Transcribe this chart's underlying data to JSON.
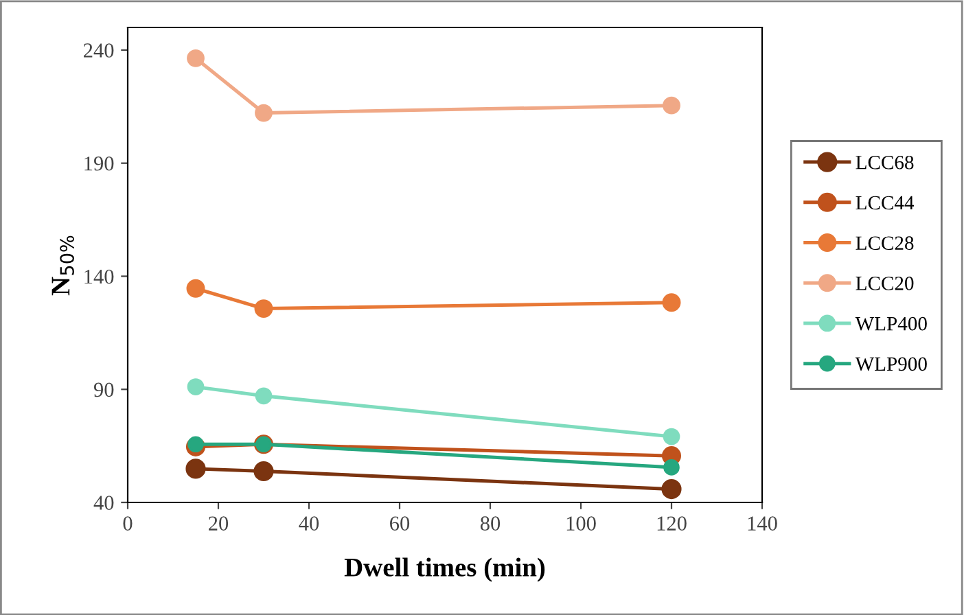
{
  "chart_data": {
    "type": "line",
    "xlabel": "Dwell times (min)",
    "ylabel": "N$_{50%}$",
    "x": [
      15,
      30,
      120
    ],
    "series": [
      {
        "name": "LCC68",
        "color": "#7b3410",
        "values": [
          54.9,
          53.8,
          45.9
        ]
      },
      {
        "name": "LCC44",
        "color": "#c0521c",
        "values": [
          64.6,
          65.7,
          60.6
        ]
      },
      {
        "name": "LCC28",
        "color": "#e87937",
        "values": [
          134.6,
          125.7,
          128.4
        ]
      },
      {
        "name": "LCC20",
        "color": "#f0a886",
        "values": [
          236.4,
          212.2,
          215.5
        ]
      },
      {
        "name": "WLP400",
        "color": "#7fdcbe",
        "values": [
          91.1,
          87.1,
          69.1
        ]
      },
      {
        "name": "WLP900",
        "color": "#26a77f",
        "values": [
          65.7,
          65.7,
          55.5
        ]
      }
    ],
    "xlim": [
      0,
      140
    ],
    "xticks": [
      0,
      20,
      40,
      60,
      80,
      100,
      120,
      140
    ],
    "ylim": [
      40,
      250
    ],
    "yticks": [
      40,
      90,
      140,
      190,
      240
    ],
    "marker": "circle",
    "grid": false,
    "legend": "right"
  }
}
